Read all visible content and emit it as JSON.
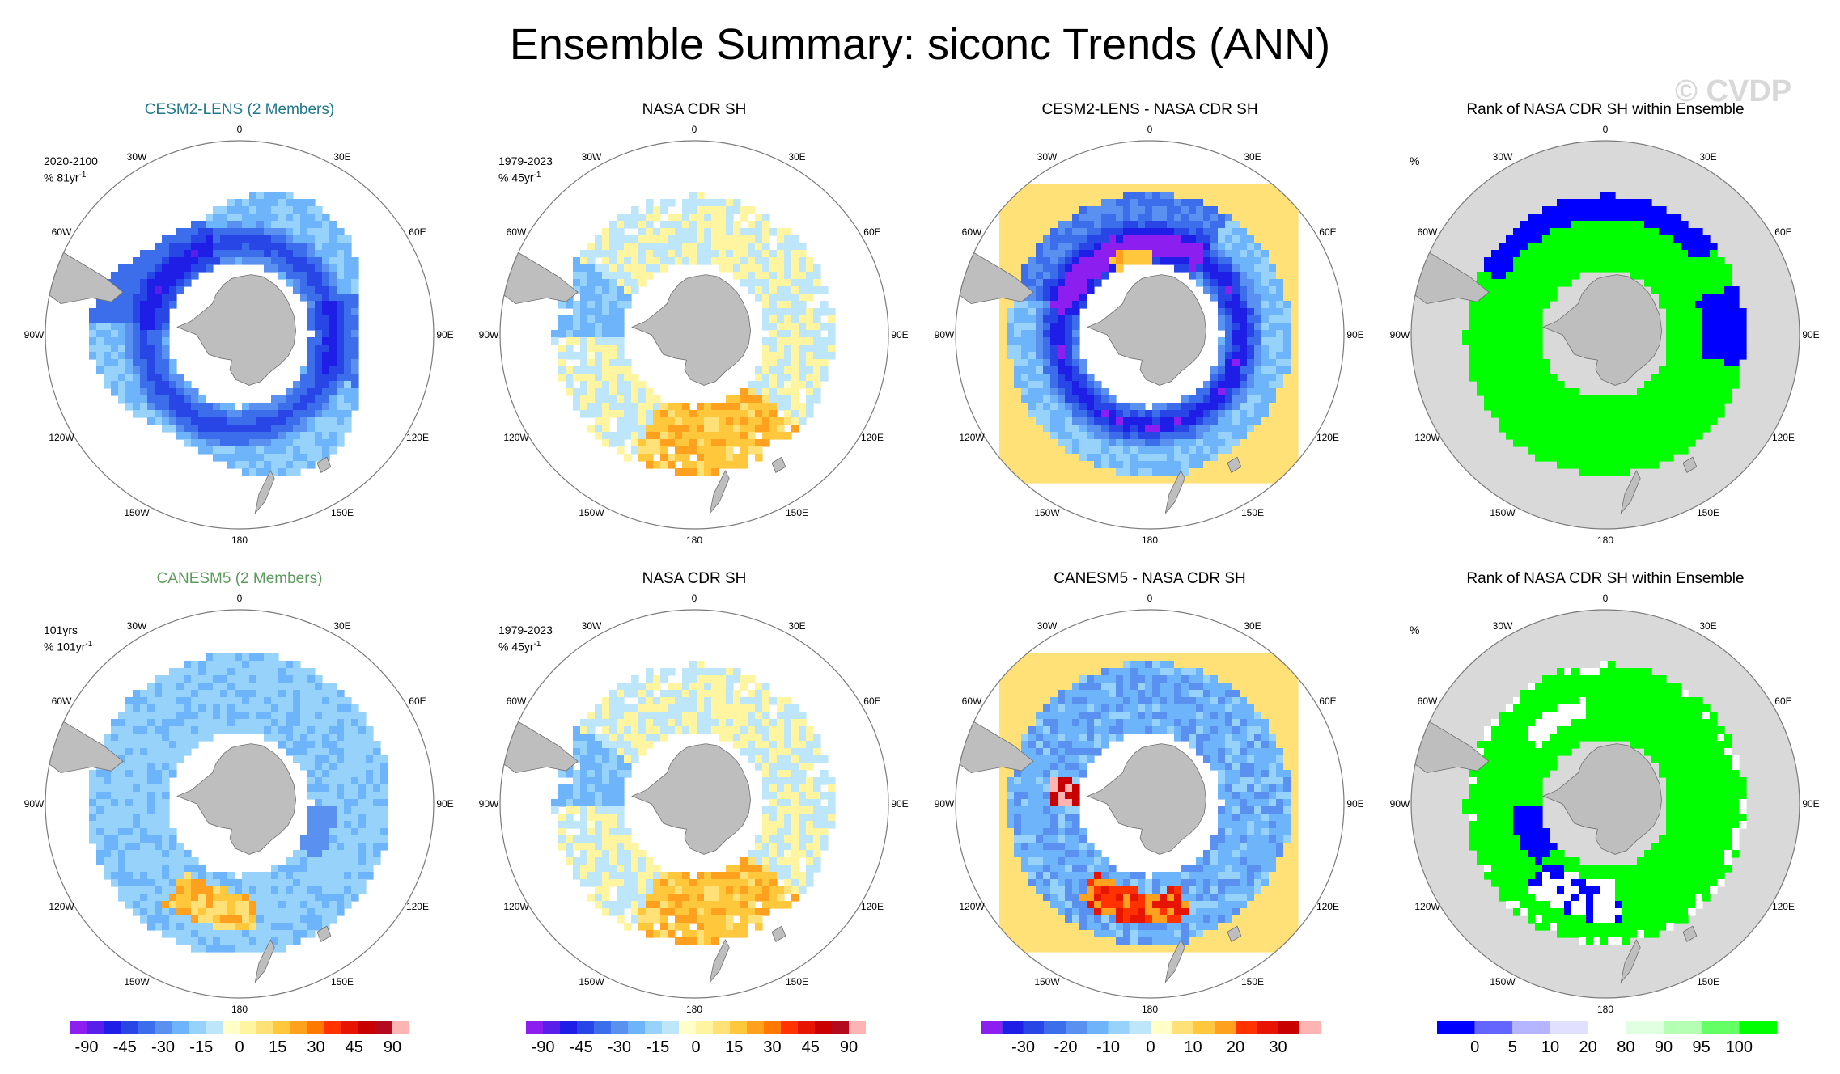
{
  "title": "Ensemble Summary: siconc Trends (ANN)",
  "watermark": "© CVDP",
  "longitude_labels": [
    "0",
    "30E",
    "60E",
    "90E",
    "120E",
    "150E",
    "180",
    "150W",
    "120W",
    "90W",
    "60W",
    "30W"
  ],
  "chart_data": [
    {
      "id": "r1c1",
      "type": "heatmap",
      "title": "CESM2-LENS (2 Members)",
      "title_style": "model1",
      "period": "2020-2100",
      "units": "% 81yr",
      "units_sup": "-1",
      "field": "model1"
    },
    {
      "id": "r1c2",
      "type": "heatmap",
      "title": "NASA CDR SH",
      "period": "1979-2023",
      "units": "% 45yr",
      "units_sup": "-1",
      "field": "obs"
    },
    {
      "id": "r1c3",
      "type": "heatmap",
      "title": "CESM2-LENS - NASA CDR SH",
      "period": "",
      "units": "",
      "units_sup": "",
      "field": "diff1"
    },
    {
      "id": "r1c4",
      "type": "heatmap",
      "title": "Rank of NASA CDR SH within Ensemble",
      "period": "",
      "units": "%",
      "units_sup": "",
      "field": "rank1"
    },
    {
      "id": "r2c1",
      "type": "heatmap",
      "title": "CANESM5 (2 Members)",
      "title_style": "model2",
      "period": "101yrs",
      "units": "% 101yr",
      "units_sup": "-1",
      "field": "model2"
    },
    {
      "id": "r2c2",
      "type": "heatmap",
      "title": "NASA CDR SH",
      "period": "1979-2023",
      "units": "% 45yr",
      "units_sup": "-1",
      "field": "obs"
    },
    {
      "id": "r2c3",
      "type": "heatmap",
      "title": "CANESM5 - NASA CDR SH",
      "period": "",
      "units": "",
      "units_sup": "",
      "field": "diff2"
    },
    {
      "id": "r2c4",
      "type": "heatmap",
      "title": "Rank of NASA CDR SH within Ensemble",
      "period": "",
      "units": "%",
      "units_sup": "",
      "field": "rank2"
    }
  ],
  "colorbars": [
    {
      "id": "cb1",
      "labels": [
        "-90",
        "-45",
        "-30",
        "-15",
        "0",
        "15",
        "30",
        "45",
        "90"
      ],
      "colors": [
        "#8c1ef0",
        "#5a1eea",
        "#1e1ee6",
        "#2846e6",
        "#3c6eeb",
        "#5a91f0",
        "#6eb4fa",
        "#96d2fa",
        "#bee6fa",
        "#ffffc8",
        "#fff5a0",
        "#ffe178",
        "#ffc83c",
        "#ffa01e",
        "#ff7800",
        "#ff3200",
        "#e61400",
        "#c80000",
        "#b40a1e",
        "#ffb4b4"
      ]
    },
    {
      "id": "cb2",
      "labels": [
        "-90",
        "-45",
        "-30",
        "-15",
        "0",
        "15",
        "30",
        "45",
        "90"
      ],
      "colors": [
        "#8c1ef0",
        "#5a1eea",
        "#1e1ee6",
        "#2846e6",
        "#3c6eeb",
        "#5a91f0",
        "#6eb4fa",
        "#96d2fa",
        "#bee6fa",
        "#ffffc8",
        "#fff5a0",
        "#ffe178",
        "#ffc83c",
        "#ffa01e",
        "#ff7800",
        "#ff3200",
        "#e61400",
        "#c80000",
        "#b40a1e",
        "#ffb4b4"
      ]
    },
    {
      "id": "cb3",
      "labels": [
        "-30",
        "-20",
        "-10",
        "0",
        "10",
        "20",
        "30"
      ],
      "colors": [
        "#8c1ef0",
        "#1e1ee6",
        "#2846e6",
        "#3c6eeb",
        "#5a91f0",
        "#6eb4fa",
        "#96d2fa",
        "#bee6fa",
        "#ffffc8",
        "#ffe178",
        "#ffc83c",
        "#ffa01e",
        "#ff3200",
        "#e61400",
        "#c80000",
        "#ffb4b4"
      ]
    },
    {
      "id": "cb4",
      "labels": [
        "0",
        "5",
        "10",
        "20",
        "80",
        "90",
        "95",
        "100"
      ],
      "colors": [
        "#0000ff",
        "#6464ff",
        "#b4b4ff",
        "#e1e1ff",
        "#ffffff",
        "#e1ffe1",
        "#b4ffb4",
        "#64ff64",
        "#00ff00"
      ]
    }
  ],
  "colors": {
    "land": "#bebebe",
    "ocean_ring": "#d9d9d9",
    "boundary": "#7a7a7a"
  }
}
